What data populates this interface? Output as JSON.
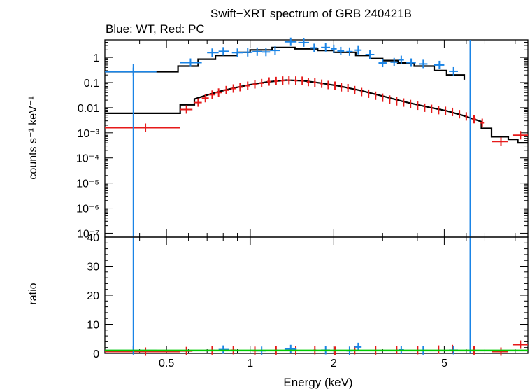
{
  "chart_data": [
    {
      "type": "scatter",
      "title": "Swift−XRT spectrum of GRB 240421B",
      "subtitle": "Blue: WT, Red: PC",
      "xlabel": "",
      "ylabel": "counts s⁻¹ keV⁻¹",
      "x_scale": "log",
      "y_scale": "log",
      "xlim": [
        0.3,
        10
      ],
      "ylim": [
        7e-08,
        5
      ],
      "grid": false,
      "y_ticks": [
        {
          "v": 1,
          "label": "1"
        },
        {
          "v": 0.1,
          "label": "0.1"
        },
        {
          "v": 0.01,
          "label": "0.01"
        },
        {
          "v": 0.001,
          "label": "10⁻³"
        },
        {
          "v": 0.0001,
          "label": "10⁻⁴"
        },
        {
          "v": 1e-05,
          "label": "10⁻⁵"
        },
        {
          "v": 1e-06,
          "label": "10⁻⁶"
        },
        {
          "v": 1e-07,
          "label": "10⁻⁷"
        }
      ],
      "series": [
        {
          "color": "#1a84e6",
          "points": [
            [
              0.38,
              0.27,
              0.3,
              0.46
            ],
            [
              0.61,
              0.62,
              0.56,
              0.67
            ],
            [
              0.73,
              1.55,
              0.7,
              0.77
            ],
            [
              0.8,
              1.75,
              0.77,
              0.84
            ],
            [
              0.9,
              1.55,
              0.86,
              0.94
            ],
            [
              0.98,
              1.6,
              0.94,
              1.02
            ],
            [
              1.06,
              1.7,
              1.02,
              1.1
            ],
            [
              1.14,
              1.65,
              1.1,
              1.18
            ],
            [
              1.23,
              1.9,
              1.18,
              1.28
            ],
            [
              1.4,
              4.2,
              1.33,
              1.47
            ],
            [
              1.56,
              3.9,
              1.49,
              1.63
            ],
            [
              1.7,
              2.4,
              1.65,
              1.75
            ],
            [
              1.87,
              2.5,
              1.8,
              1.94
            ],
            [
              2.0,
              2.2,
              1.95,
              2.05
            ],
            [
              2.12,
              1.8,
              2.06,
              2.18
            ],
            [
              2.28,
              1.7,
              2.22,
              2.34
            ],
            [
              2.45,
              1.95,
              2.38,
              2.52
            ],
            [
              2.7,
              1.3,
              2.6,
              2.8
            ],
            [
              3.0,
              0.6,
              2.9,
              3.1
            ],
            [
              3.3,
              0.65,
              3.2,
              3.4
            ],
            [
              3.5,
              0.8,
              3.42,
              3.58
            ],
            [
              3.8,
              0.62,
              3.65,
              3.95
            ],
            [
              4.2,
              0.55,
              4.05,
              4.35
            ],
            [
              4.8,
              0.5,
              4.6,
              5.0
            ],
            [
              5.4,
              0.28,
              5.2,
              5.6
            ]
          ]
        },
        {
          "color": "#e61a1a",
          "points": [
            [
              0.42,
              0.0016,
              0.3,
              0.56
            ],
            [
              0.59,
              0.0085,
              0.56,
              0.62
            ],
            [
              0.65,
              0.016,
              0.63,
              0.67
            ],
            [
              0.69,
              0.024,
              0.67,
              0.71
            ],
            [
              0.73,
              0.033,
              0.71,
              0.75
            ],
            [
              0.77,
              0.04,
              0.75,
              0.79
            ],
            [
              0.82,
              0.05,
              0.8,
              0.84
            ],
            [
              0.87,
              0.058,
              0.85,
              0.89
            ],
            [
              0.92,
              0.066,
              0.9,
              0.94
            ],
            [
              0.98,
              0.075,
              0.96,
              1.0
            ],
            [
              1.04,
              0.085,
              1.02,
              1.06
            ],
            [
              1.1,
              0.095,
              1.08,
              1.12
            ],
            [
              1.17,
              0.11,
              1.15,
              1.19
            ],
            [
              1.24,
              0.115,
              1.22,
              1.26
            ],
            [
              1.31,
              0.12,
              1.29,
              1.33
            ],
            [
              1.38,
              0.125,
              1.36,
              1.4
            ],
            [
              1.46,
              0.12,
              1.44,
              1.48
            ],
            [
              1.54,
              0.118,
              1.52,
              1.56
            ],
            [
              1.62,
              0.105,
              1.6,
              1.64
            ],
            [
              1.71,
              0.1,
              1.69,
              1.73
            ],
            [
              1.81,
              0.09,
              1.79,
              1.83
            ],
            [
              1.91,
              0.08,
              1.89,
              1.93
            ],
            [
              2.02,
              0.075,
              2.0,
              2.04
            ],
            [
              2.13,
              0.065,
              2.11,
              2.15
            ],
            [
              2.25,
              0.06,
              2.23,
              2.27
            ],
            [
              2.38,
              0.05,
              2.36,
              2.4
            ],
            [
              2.52,
              0.042,
              2.5,
              2.54
            ],
            [
              2.67,
              0.036,
              2.65,
              2.69
            ],
            [
              2.83,
              0.03,
              2.81,
              2.85
            ],
            [
              3.0,
              0.025,
              2.98,
              3.02
            ],
            [
              3.18,
              0.021,
              3.16,
              3.2
            ],
            [
              3.37,
              0.018,
              3.35,
              3.39
            ],
            [
              3.57,
              0.016,
              3.55,
              3.59
            ],
            [
              3.78,
              0.014,
              3.76,
              3.8
            ],
            [
              4.01,
              0.012,
              3.99,
              4.03
            ],
            [
              4.25,
              0.01,
              4.23,
              4.27
            ],
            [
              4.5,
              0.009,
              4.48,
              4.52
            ],
            [
              4.77,
              0.008,
              4.75,
              4.79
            ],
            [
              5.05,
              0.0075,
              5.03,
              5.07
            ],
            [
              5.35,
              0.0068,
              5.33,
              5.37
            ],
            [
              5.67,
              0.0055,
              5.65,
              5.69
            ],
            [
              6.0,
              0.0045,
              5.95,
              6.05
            ],
            [
              6.4,
              0.0035,
              6.3,
              6.5
            ],
            [
              6.85,
              0.0025,
              6.75,
              6.95
            ],
            [
              8.0,
              0.00045,
              7.4,
              8.5
            ],
            [
              9.4,
              0.0008,
              8.8,
              10.0
            ]
          ]
        }
      ],
      "model_wt": [
        [
          0.3,
          0.27
        ],
        [
          0.55,
          0.27
        ],
        [
          0.55,
          0.45
        ],
        [
          0.65,
          0.45
        ],
        [
          0.65,
          0.85
        ],
        [
          0.75,
          0.85
        ],
        [
          0.75,
          1.2
        ],
        [
          0.9,
          1.2
        ],
        [
          0.9,
          1.6
        ],
        [
          1.0,
          1.6
        ],
        [
          1.0,
          2.0
        ],
        [
          1.2,
          2.0
        ],
        [
          1.2,
          2.5
        ],
        [
          1.45,
          2.5
        ],
        [
          1.45,
          2.2
        ],
        [
          1.75,
          2.2
        ],
        [
          1.75,
          1.9
        ],
        [
          2.0,
          1.9
        ],
        [
          2.0,
          1.6
        ],
        [
          2.4,
          1.6
        ],
        [
          2.4,
          1.2
        ],
        [
          2.7,
          1.2
        ],
        [
          2.7,
          0.9
        ],
        [
          3.0,
          0.9
        ],
        [
          3.0,
          0.75
        ],
        [
          3.4,
          0.75
        ],
        [
          3.4,
          0.6
        ],
        [
          3.9,
          0.6
        ],
        [
          3.9,
          0.45
        ],
        [
          4.6,
          0.45
        ],
        [
          4.6,
          0.3
        ],
        [
          5.1,
          0.3
        ],
        [
          5.1,
          0.2
        ],
        [
          5.9,
          0.2
        ],
        [
          5.9,
          0.13
        ]
      ],
      "model_pc": [
        [
          0.3,
          0.006
        ],
        [
          0.56,
          0.006
        ],
        [
          0.56,
          0.013
        ],
        [
          0.63,
          0.013
        ],
        [
          0.63,
          0.022
        ],
        [
          0.7,
          0.032
        ],
        [
          0.78,
          0.045
        ],
        [
          0.88,
          0.062
        ],
        [
          1.0,
          0.082
        ],
        [
          1.15,
          0.105
        ],
        [
          1.35,
          0.125
        ],
        [
          1.55,
          0.118
        ],
        [
          1.8,
          0.095
        ],
        [
          2.1,
          0.072
        ],
        [
          2.5,
          0.048
        ],
        [
          3.0,
          0.029
        ],
        [
          3.6,
          0.017
        ],
        [
          4.3,
          0.011
        ],
        [
          5.1,
          0.0075
        ],
        [
          5.8,
          0.005
        ],
        [
          6.4,
          0.0035
        ],
        [
          6.8,
          0.0028
        ],
        [
          6.8,
          0.0015
        ],
        [
          7.4,
          0.0015
        ],
        [
          7.4,
          0.0007
        ],
        [
          8.5,
          0.0007
        ],
        [
          8.5,
          0.00055
        ],
        [
          9.2,
          0.00055
        ],
        [
          9.2,
          0.0004
        ],
        [
          10.0,
          0.0004
        ]
      ]
    },
    {
      "type": "scatter",
      "title": "",
      "xlabel": "Energy (keV)",
      "ylabel": "ratio",
      "x_scale": "log",
      "y_scale": "linear",
      "xlim": [
        0.3,
        10
      ],
      "ylim": [
        0,
        40
      ],
      "grid": false,
      "x_ticks": [
        {
          "v": 0.5,
          "label": "0.5"
        },
        {
          "v": 1,
          "label": "1"
        },
        {
          "v": 2,
          "label": "2"
        },
        {
          "v": 5,
          "label": "5"
        }
      ],
      "y_ticks": [
        {
          "v": 0,
          "label": "0"
        },
        {
          "v": 10,
          "label": "10"
        },
        {
          "v": 20,
          "label": "20"
        },
        {
          "v": 30,
          "label": "30"
        },
        {
          "v": 40,
          "label": "40"
        }
      ],
      "reference_line": {
        "y": 1,
        "color": "#00cc00"
      },
      "series": [
        {
          "color": "#1a84e6",
          "points": [
            [
              0.38,
              1.0,
              0.3,
              0.46
            ],
            [
              0.8,
              1.3,
              0.77,
              0.84
            ],
            [
              1.1,
              0.9,
              1.06,
              1.14
            ],
            [
              1.4,
              1.5,
              1.33,
              1.47
            ],
            [
              1.87,
              1.1,
              1.8,
              1.94
            ],
            [
              2.28,
              0.9,
              2.22,
              2.34
            ],
            [
              2.45,
              2.2,
              2.38,
              2.52
            ],
            [
              3.5,
              1.2,
              3.42,
              3.58
            ],
            [
              4.2,
              1.0,
              4.05,
              4.35
            ],
            [
              5.4,
              1.1,
              5.2,
              5.6
            ]
          ]
        },
        {
          "color": "#e61a1a",
          "points": [
            [
              0.42,
              0.6,
              0.3,
              0.56
            ],
            [
              0.59,
              0.8,
              0.56,
              0.62
            ],
            [
              0.73,
              1.0,
              0.71,
              0.75
            ],
            [
              0.87,
              1.1,
              0.85,
              0.89
            ],
            [
              1.04,
              0.9,
              1.02,
              1.06
            ],
            [
              1.24,
              1.0,
              1.22,
              1.26
            ],
            [
              1.46,
              1.0,
              1.44,
              1.48
            ],
            [
              1.71,
              1.1,
              1.69,
              1.73
            ],
            [
              2.02,
              0.9,
              2.0,
              2.04
            ],
            [
              2.38,
              1.1,
              2.36,
              2.4
            ],
            [
              2.83,
              1.0,
              2.81,
              2.85
            ],
            [
              3.37,
              1.2,
              3.35,
              3.39
            ],
            [
              4.01,
              1.1,
              3.99,
              4.03
            ],
            [
              4.77,
              1.3,
              4.75,
              4.79
            ],
            [
              5.35,
              1.5,
              5.33,
              5.37
            ],
            [
              6.4,
              1.0,
              6.3,
              6.5
            ],
            [
              8.0,
              0.6,
              7.4,
              8.5
            ],
            [
              9.4,
              3.0,
              8.8,
              10.0
            ]
          ]
        }
      ]
    }
  ]
}
